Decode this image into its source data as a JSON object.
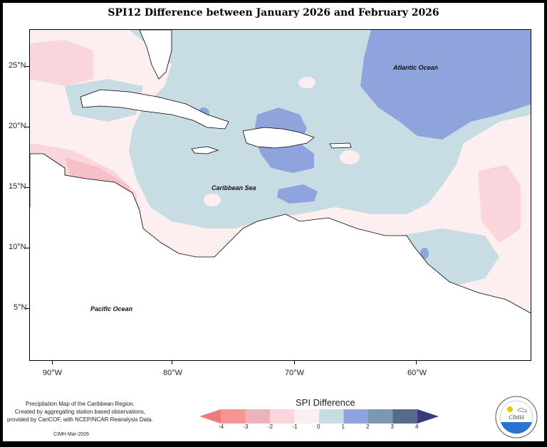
{
  "title": "SPI12 Difference between January 2026 and February 2026",
  "map": {
    "lat_ticks": [
      "25°N",
      "20°N",
      "15°N",
      "10°N",
      "5°N"
    ],
    "lon_ticks": [
      "90°W",
      "80°W",
      "70°W",
      "60°W"
    ],
    "labels": {
      "atlantic": "Atlantic Ocean",
      "caribbean": "Caribbean Sea",
      "pacific": "Pacific Ocean"
    }
  },
  "footnote": {
    "line1": "Precipitation Map of the Caribbean Region.",
    "line2": "Created by aggregating station based observations,",
    "line3": "provided by CariCOF, with NCEP/NCAR Reanalysis Data.",
    "credit": "CIMH Mar-2026"
  },
  "legend": {
    "title": "SPI Difference",
    "ticks": [
      "-4",
      "-3",
      "-2",
      "-1",
      "0",
      "1",
      "2",
      "3",
      "4"
    ],
    "colors": [
      "#f07a7a",
      "#f79494",
      "#ebb4b8",
      "#f9d5dc",
      "#fdeef0",
      "#c8dde3",
      "#8fa3dc",
      "#7b98b0",
      "#566a8d",
      "#363a7e"
    ]
  },
  "logo": {
    "text": "CIMH"
  }
}
